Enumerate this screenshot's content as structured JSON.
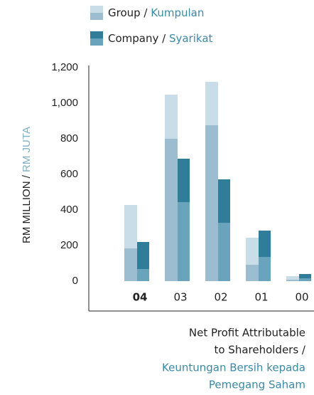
{
  "chart_data": {
    "type": "stacked-grouped-bar",
    "title_lines": [
      "Net Profit Attributable",
      "to Shareholders /"
    ],
    "title_alt_lines": [
      "Keuntungan Bersih kepada",
      "Pemegang Saham"
    ],
    "y_label": "RM MILLION /",
    "y_label_alt": "RM JUTA",
    "categories": [
      "04",
      "03",
      "02",
      "01",
      "00"
    ],
    "highlight_category": "04",
    "ylim": [
      0,
      1200
    ],
    "yticks": [
      0,
      200,
      400,
      600,
      800,
      {
        "value": 1000,
        "label": "1,000"
      },
      {
        "value": 1200,
        "label": "1,200"
      }
    ],
    "series": [
      {
        "name": "Group /",
        "name_alt": "Kumpulan",
        "stacks": [
          {
            "color": "#9bbdcf",
            "values": [
              184,
              800,
              876,
              92,
              8
            ]
          },
          {
            "color": "#c9dde8",
            "values": [
              244,
              248,
              244,
              152,
              20
            ]
          }
        ]
      },
      {
        "name": "Company /",
        "name_alt": "Syarikat",
        "stacks": [
          {
            "color": "#6aa4bc",
            "values": [
              68,
              444,
              328,
              136,
              16
            ]
          },
          {
            "color": "#2f7d99",
            "values": [
              152,
              244,
              244,
              148,
              24
            ]
          }
        ]
      }
    ]
  }
}
